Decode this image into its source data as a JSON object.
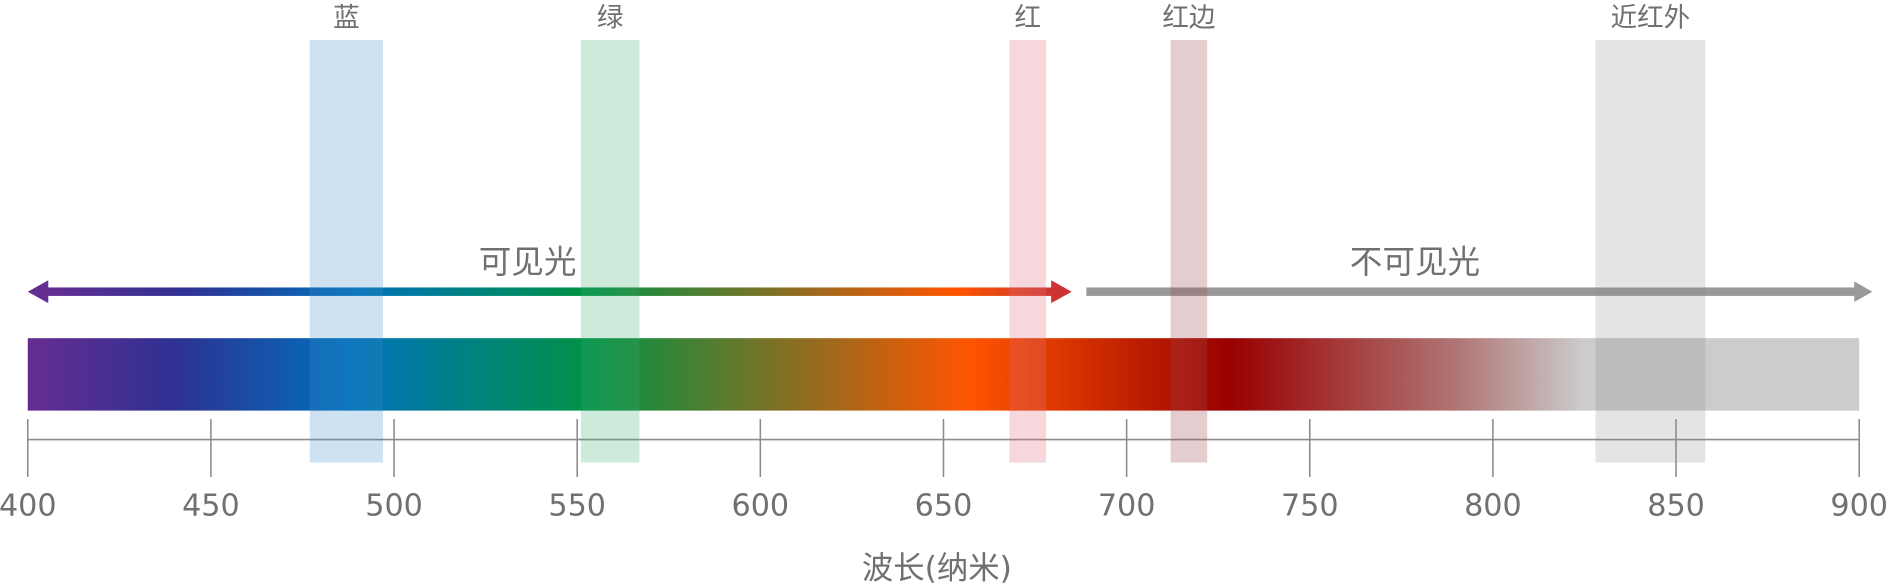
{
  "axis": {
    "title": "波长(纳米)",
    "min": 400,
    "max": 900,
    "ticks": [
      400,
      450,
      500,
      550,
      600,
      650,
      700,
      750,
      800,
      850,
      900
    ],
    "tick_labels": [
      "400",
      "450",
      "500",
      "550",
      "600",
      "650",
      "700",
      "750",
      "800",
      "850",
      "900"
    ]
  },
  "bands": [
    {
      "label": "蓝",
      "from": 477,
      "to": 497,
      "color": "#3a8cc8",
      "opacity": 0.25
    },
    {
      "label": "绿",
      "from": 551,
      "to": 567,
      "color": "#3aaa70",
      "opacity": 0.25
    },
    {
      "label": "红",
      "from": 668,
      "to": 678,
      "color": "#e0707c",
      "opacity": 0.28
    },
    {
      "label": "红边",
      "from": 712,
      "to": 722,
      "color": "#a34a52",
      "opacity": 0.28
    },
    {
      "label": "近红外",
      "from": 828,
      "to": 858,
      "color": "#8c8c8c",
      "opacity": 0.23
    }
  ],
  "ranges": {
    "visible": {
      "label": "可见光",
      "from": 400,
      "to": 685
    },
    "invisible": {
      "label": "不可见光",
      "from": 689,
      "to": 897,
      "color": "#999999"
    }
  },
  "spectrum_stops": [
    {
      "nm": 400,
      "color": "#662d91"
    },
    {
      "nm": 440,
      "color": "#2e3192"
    },
    {
      "nm": 488,
      "color": "#0071bc"
    },
    {
      "nm": 553,
      "color": "#009245"
    },
    {
      "nm": 610,
      "color": "#8a6e22"
    },
    {
      "nm": 657,
      "color": "#ff5500"
    },
    {
      "nm": 728,
      "color": "#990000"
    },
    {
      "nm": 790,
      "color": "#b07575"
    },
    {
      "nm": 825,
      "color": "#cccccc"
    },
    {
      "nm": 900,
      "color": "#cccccc"
    }
  ]
}
